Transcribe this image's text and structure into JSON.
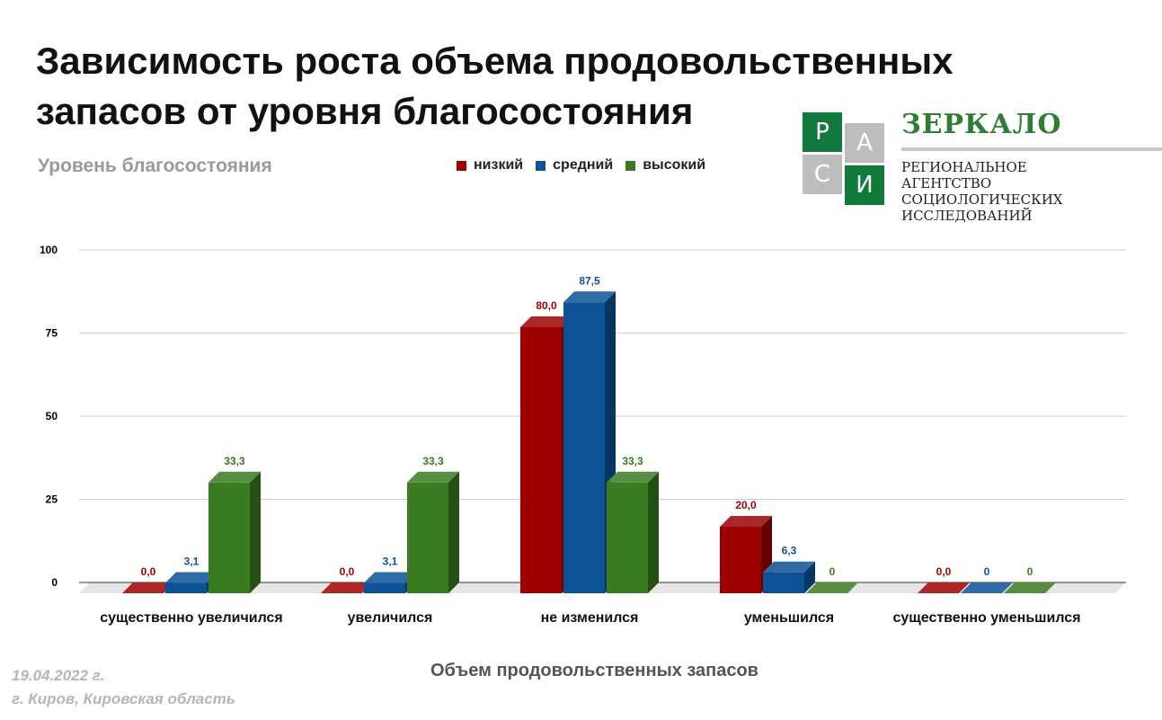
{
  "header": {
    "title_line1": "Зависимость роста объема продовольственных",
    "title_line2": "запасов от уровня благосостояния",
    "subtitle": "Уровень благосостояния"
  },
  "logo": {
    "letters": [
      "Р",
      "А",
      "С",
      "И"
    ],
    "name": "ЗЕРКАЛО",
    "desc_line1": "РЕГИОНАЛЬНОЕ АГЕНТСТВО",
    "desc_line2": "СОЦИОЛОГИЧЕСКИХ",
    "desc_line3": "ИССЛЕДОВАНИЙ"
  },
  "footer": {
    "date": "19.04.2022 г.",
    "location": "г. Киров, Кировская область"
  },
  "colors": {
    "low": "#9c0000",
    "mid": "#0d5196",
    "high": "#3a7a20",
    "logo_green": "#0f7a3a",
    "logo_grey": "#bdbdbd"
  },
  "chart_data": {
    "type": "bar",
    "title": "Зависимость роста объема продовольственных запасов от уровня благосостояния",
    "legend_title": "Уровень благосостояния",
    "xlabel": "Объем продовольственных запасов",
    "ylabel": "",
    "ylim": [
      0,
      100
    ],
    "yticks": [
      "0",
      "25",
      "50",
      "75",
      "100"
    ],
    "categories": [
      "существенно увеличился",
      "увеличился",
      "не изменился",
      "уменьшился",
      "существенно уменьшился"
    ],
    "series": [
      {
        "name": "низкий",
        "color": "#9c0000",
        "values": [
          0,
          0,
          80,
          20,
          0
        ],
        "labels": [
          "0,0",
          "0,0",
          "80,0",
          "20,0",
          "0,0"
        ]
      },
      {
        "name": "средний",
        "color": "#0d5196",
        "values": [
          3.1,
          3.1,
          87.5,
          6.3,
          0
        ],
        "labels": [
          "3,1",
          "3,1",
          "87,5",
          "6,3",
          "0"
        ]
      },
      {
        "name": "высокий",
        "color": "#3a7a20",
        "values": [
          33.3,
          33.3,
          33.3,
          0,
          0
        ],
        "labels": [
          "33,3",
          "33,3",
          "33,3",
          "0",
          "0"
        ]
      }
    ]
  }
}
